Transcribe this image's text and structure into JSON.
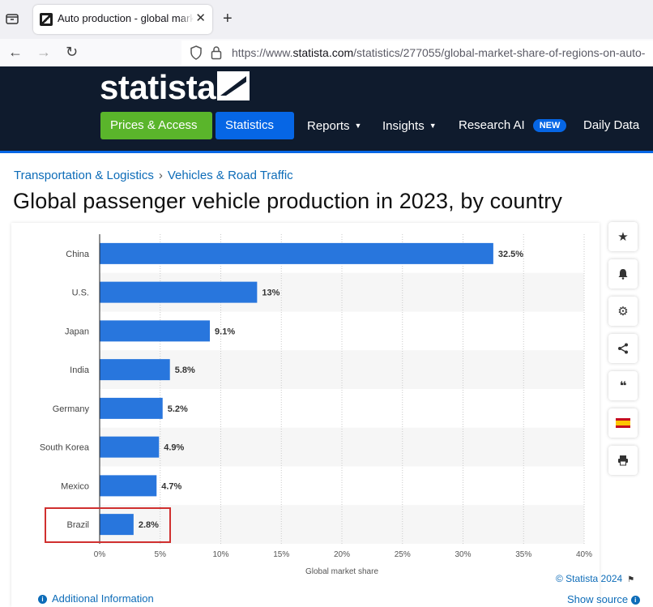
{
  "browser": {
    "tab_title": "Auto production - global market share of regions",
    "url_prefix": "https://www.",
    "url_domain": "statista.com",
    "url_path": "/statistics/277055/global-market-share-of-regions-on-auto-"
  },
  "header": {
    "logo": "statista",
    "nav": [
      {
        "label": "Prices & Access"
      },
      {
        "label": "Statistics"
      },
      {
        "label": "Reports"
      },
      {
        "label": "Insights"
      },
      {
        "label": "Research AI",
        "badge": "NEW"
      },
      {
        "label": "Daily Data"
      }
    ]
  },
  "breadcrumb": [
    "Transportation & Logistics",
    "Vehicles & Road Traffic"
  ],
  "page_title": "Global passenger vehicle production in 2023, by country",
  "chart_data": {
    "type": "bar",
    "orientation": "horizontal",
    "categories": [
      "China",
      "U.S.",
      "Japan",
      "India",
      "Germany",
      "South Korea",
      "Mexico",
      "Brazil"
    ],
    "values": [
      32.5,
      13,
      9.1,
      5.8,
      5.2,
      4.9,
      4.7,
      2.8
    ],
    "value_labels": [
      "32.5%",
      "13%",
      "9.1%",
      "5.8%",
      "5.2%",
      "4.9%",
      "4.7%",
      "2.8%"
    ],
    "xlabel": "Global market share",
    "ylabel": "",
    "xlim": [
      0,
      40
    ],
    "xticks": [
      0,
      5,
      10,
      15,
      20,
      25,
      30,
      35,
      40
    ],
    "xtick_labels": [
      "0%",
      "5%",
      "10%",
      "15%",
      "20%",
      "25%",
      "30%",
      "35%",
      "40%"
    ],
    "highlighted_category": "Brazil",
    "bar_color": "#2876dd",
    "grid": true
  },
  "footer": {
    "copyright": "© Statista 2024",
    "additional_info": "Additional Information",
    "show_source": "Show source"
  },
  "tools": [
    "star-icon",
    "bell-icon",
    "gear-icon",
    "share-icon",
    "quote-icon",
    "flag-icon",
    "print-icon"
  ],
  "colors": {
    "header_bg": "#0f1b2d",
    "accent_green": "#5ab52b",
    "accent_blue": "#0666e5",
    "link": "#0d6cb8",
    "highlight": "#d0302f"
  }
}
